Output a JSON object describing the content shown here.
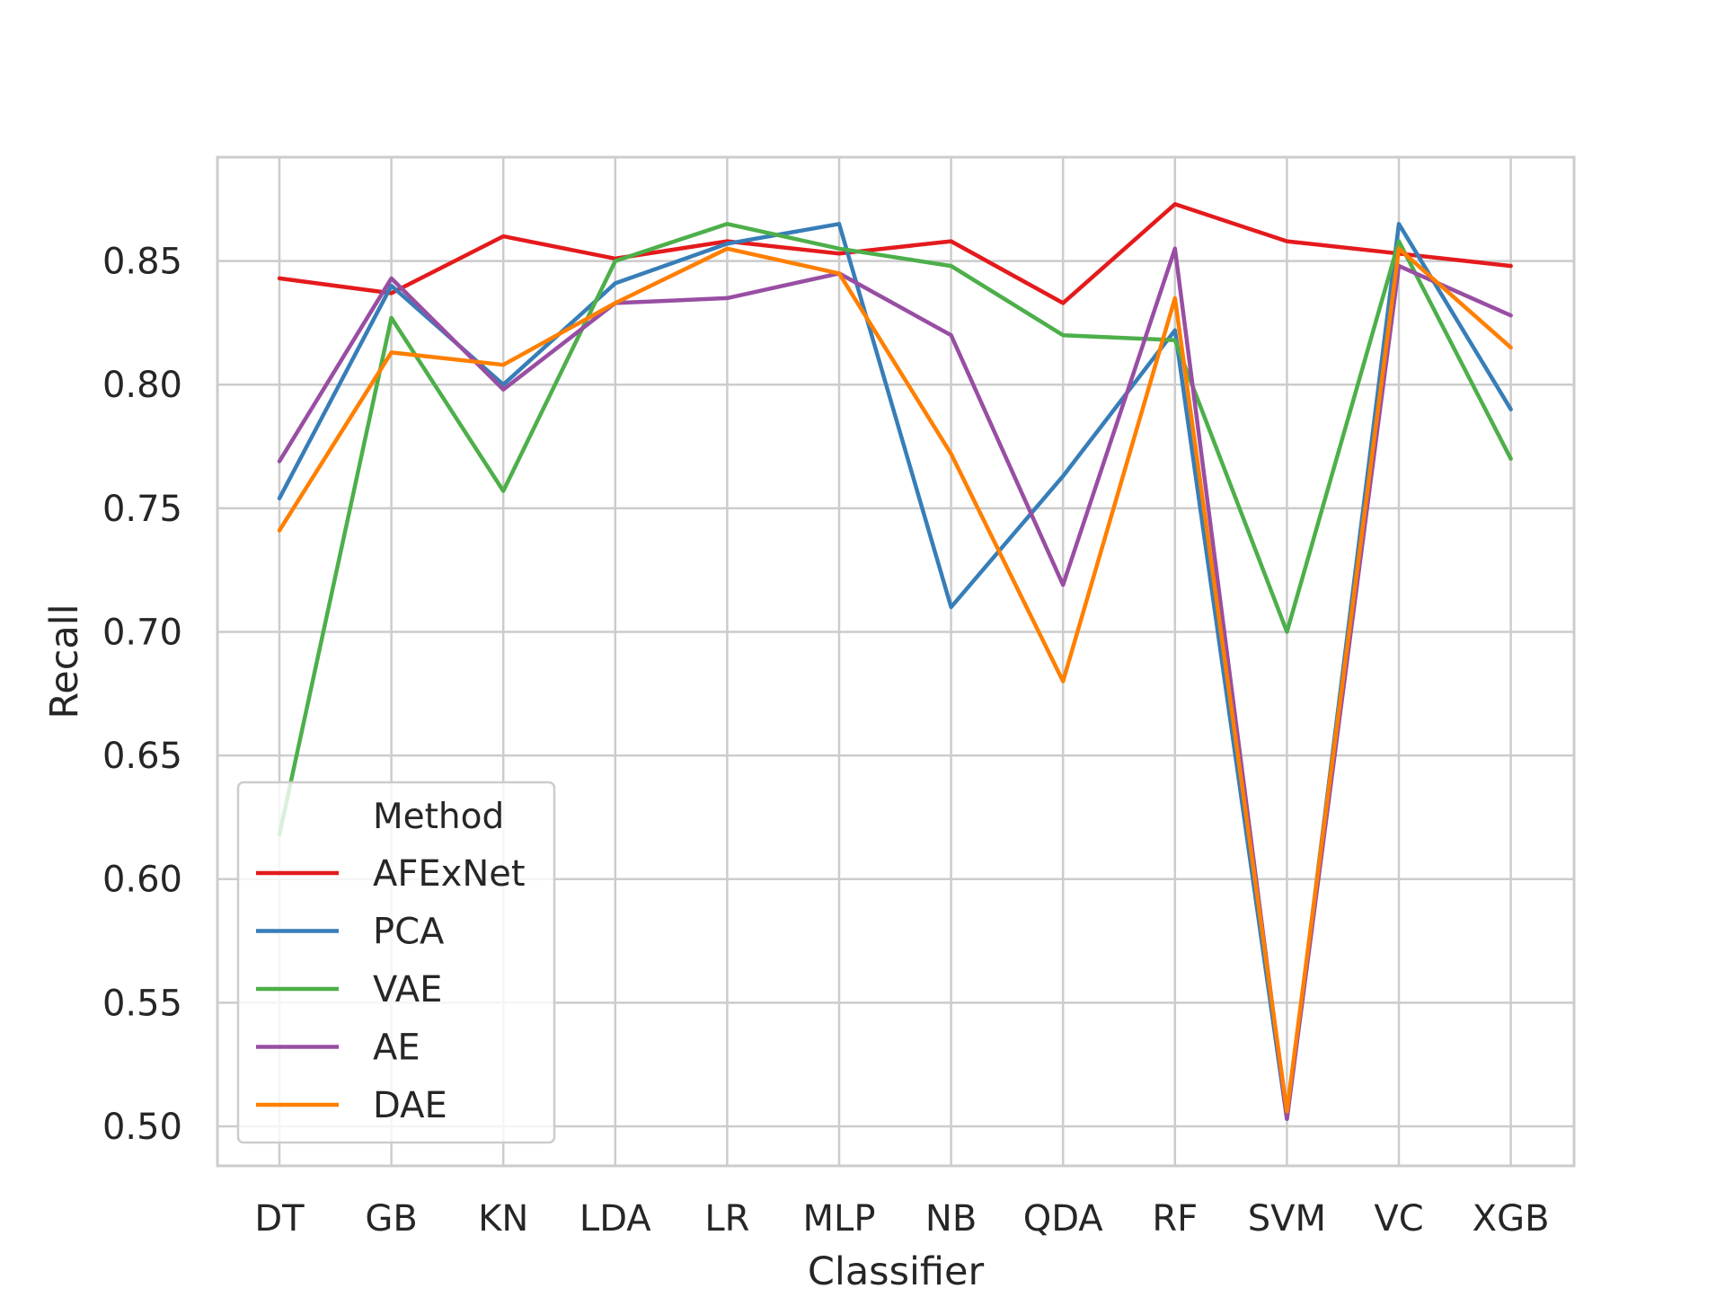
{
  "chart_data": {
    "type": "line",
    "title": "",
    "xlabel": "Classifier",
    "ylabel": "Recall",
    "categories": [
      "DT",
      "GB",
      "KN",
      "LDA",
      "LR",
      "MLP",
      "NB",
      "QDA",
      "RF",
      "SVM",
      "VC",
      "XGB"
    ],
    "ylim": [
      0.484,
      0.892
    ],
    "yticks": [
      "0.50",
      "0.55",
      "0.60",
      "0.65",
      "0.70",
      "0.75",
      "0.80",
      "0.85"
    ],
    "grid": true,
    "legend": {
      "title": "Method",
      "placement": "lower-left"
    },
    "series": [
      {
        "name": "AFExNet",
        "color": "#e41a1c",
        "values": [
          0.843,
          0.837,
          0.86,
          0.851,
          0.858,
          0.853,
          0.858,
          0.833,
          0.873,
          0.858,
          0.853,
          0.848
        ]
      },
      {
        "name": "PCA",
        "color": "#377eb8",
        "values": [
          0.754,
          0.84,
          0.8,
          0.841,
          0.857,
          0.865,
          0.71,
          0.763,
          0.822,
          0.503,
          0.865,
          0.79
        ]
      },
      {
        "name": "VAE",
        "color": "#4daf4a",
        "values": [
          0.618,
          0.827,
          0.757,
          0.85,
          0.865,
          0.855,
          0.848,
          0.82,
          0.818,
          0.7,
          0.858,
          0.77
        ]
      },
      {
        "name": "AE",
        "color": "#984ea3",
        "values": [
          0.769,
          0.843,
          0.798,
          0.833,
          0.835,
          0.845,
          0.82,
          0.719,
          0.855,
          0.503,
          0.848,
          0.828
        ]
      },
      {
        "name": "DAE",
        "color": "#ff7f00",
        "values": [
          0.741,
          0.813,
          0.808,
          0.833,
          0.855,
          0.845,
          0.772,
          0.68,
          0.835,
          0.506,
          0.855,
          0.815
        ]
      }
    ]
  }
}
